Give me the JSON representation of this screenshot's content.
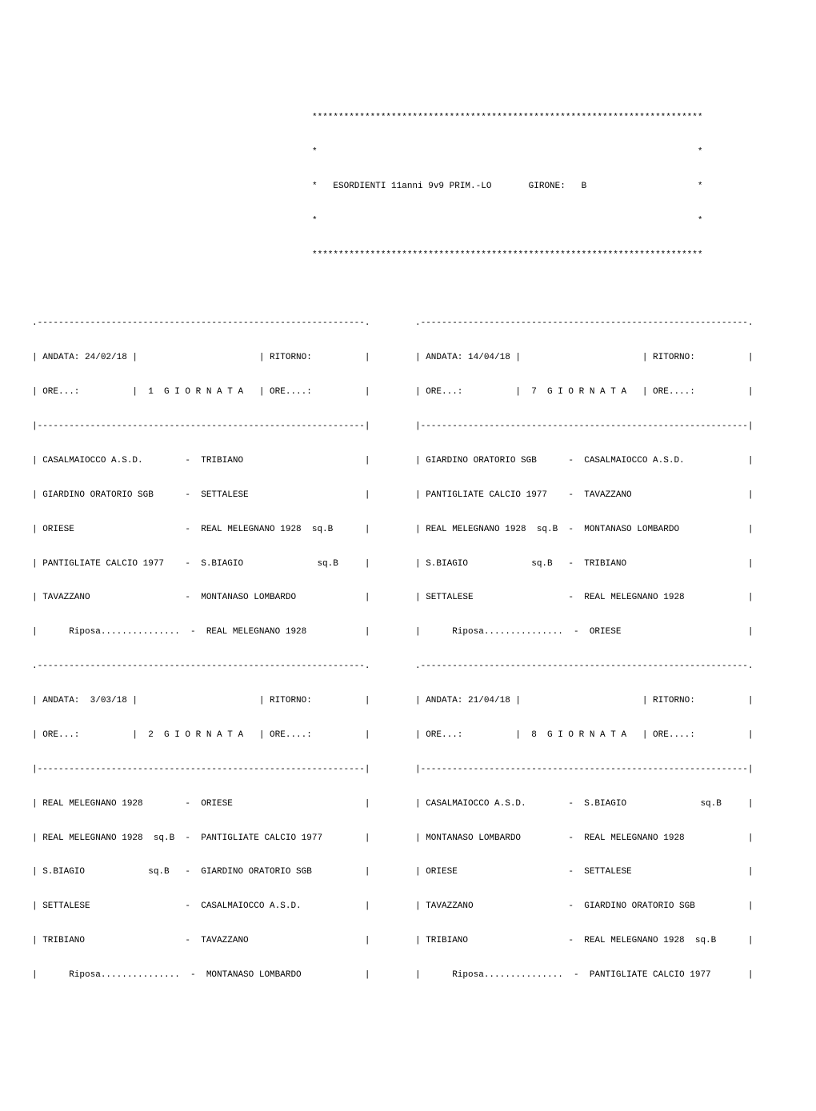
{
  "header": {
    "stars": "**************************************************************************",
    "starline_empty": "*                                                                        *",
    "title_line": "*   ESORDIENTI 11anni 9v9 PRIM.-LO       GIRONE:   B                     *"
  },
  "left": {
    "g1": {
      "top": ".--------------------------------------------------------------.",
      "andata": "| ANDATA: 24/02/18 |                       | RITORNO:          |",
      "ore": "| ORE...:          |  1  G I O R N A T A   | ORE....:          |",
      "sep": "|--------------------------------------------------------------|",
      "m1": "| CASALMAIOCCO A.S.D.        -  TRIBIANO                       |",
      "m2": "| GIARDINO ORATORIO SGB      -  SETTALESE                      |",
      "m3": "| ORIESE                     -  REAL MELEGNANO 1928  sq.B      |",
      "m4": "| PANTIGLIATE CALCIO 1977    -  S.BIAGIO              sq.B     |",
      "m5": "| TAVAZZANO                  -  MONTANASO LOMBARDO             |",
      "m6": "|      Riposa...............  -  REAL MELEGNANO 1928           |"
    },
    "g2": {
      "top": ".--------------------------------------------------------------.",
      "andata": "| ANDATA:  3/03/18 |                       | RITORNO:          |",
      "ore": "| ORE...:          |  2  G I O R N A T A   | ORE....:          |",
      "sep": "|--------------------------------------------------------------|",
      "m1": "| REAL MELEGNANO 1928        -  ORIESE                         |",
      "m2": "| REAL MELEGNANO 1928  sq.B  -  PANTIGLIATE CALCIO 1977        |",
      "m3": "| S.BIAGIO            sq.B   -  GIARDINO ORATORIO SGB          |",
      "m4": "| SETTALESE                  -  CASALMAIOCCO A.S.D.            |",
      "m5": "| TRIBIANO                   -  TAVAZZANO                      |",
      "m6": "|      Riposa...............  -  MONTANASO LOMBARDO            |"
    }
  },
  "right": {
    "g7": {
      "top": ".--------------------------------------------------------------.",
      "andata": "| ANDATA: 14/04/18 |                       | RITORNO:          |",
      "ore": "| ORE...:          |  7  G I O R N A T A   | ORE....:          |",
      "sep": "|--------------------------------------------------------------|",
      "m1": "| GIARDINO ORATORIO SGB      -  CASALMAIOCCO A.S.D.            |",
      "m2": "| PANTIGLIATE CALCIO 1977    -  TAVAZZANO                      |",
      "m3": "| REAL MELEGNANO 1928  sq.B  -  MONTANASO LOMBARDO             |",
      "m4": "| S.BIAGIO            sq.B   -  TRIBIANO                       |",
      "m5": "| SETTALESE                  -  REAL MELEGNANO 1928            |",
      "m6": "|      Riposa...............  -  ORIESE                        |"
    },
    "g8": {
      "top": ".--------------------------------------------------------------.",
      "andata": "| ANDATA: 21/04/18 |                       | RITORNO:          |",
      "ore": "| ORE...:          |  8  G I O R N A T A   | ORE....:          |",
      "sep": "|--------------------------------------------------------------|",
      "m1": "| CASALMAIOCCO A.S.D.        -  S.BIAGIO              sq.B     |",
      "m2": "| MONTANASO LOMBARDO         -  REAL MELEGNANO 1928            |",
      "m3": "| ORIESE                     -  SETTALESE                      |",
      "m4": "| TAVAZZANO                  -  GIARDINO ORATORIO SGB          |",
      "m5": "| TRIBIANO                   -  REAL MELEGNANO 1928  sq.B      |",
      "m6": "|      Riposa...............  -  PANTIGLIATE CALCIO 1977       |"
    }
  }
}
